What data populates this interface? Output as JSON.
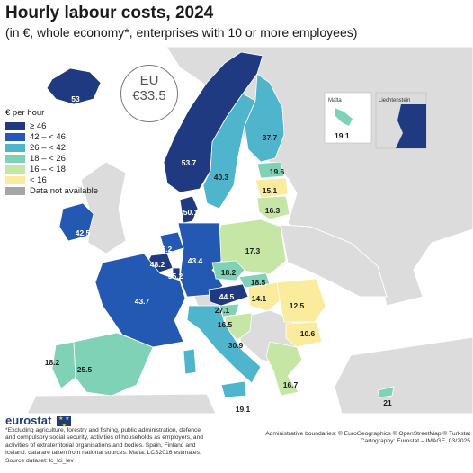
{
  "title": "Hourly labour costs, 2024",
  "subtitle": "(in €, whole economy*, enterprises with 10 or more employees)",
  "eu_average": {
    "label": "EU",
    "value": "€33.5"
  },
  "legend": {
    "title": "€ per hour",
    "classes": [
      {
        "label": "≥ 46",
        "color": "#1f3a80"
      },
      {
        "label": "42 – < 46",
        "color": "#2459b3"
      },
      {
        "label": "26 – < 42",
        "color": "#4fb5cc"
      },
      {
        "label": "18 – < 26",
        "color": "#80d2b6"
      },
      {
        "label": "16 – < 18",
        "color": "#c6e6a6"
      },
      {
        "label": "< 16",
        "color": "#fbeb9c"
      },
      {
        "label": "Data not available",
        "color": "#a5a5a5"
      }
    ]
  },
  "insets": {
    "malta": "Malta",
    "liechtenstein": "Liechtenstein"
  },
  "map_values": {
    "iceland": "53",
    "norway": "53.7",
    "sweden": "40.3",
    "finland": "37.7",
    "ireland": "42.5",
    "denmark": "50.1",
    "estonia": "19.6",
    "latvia": "15.1",
    "lithuania": "16.3",
    "poland": "17.3",
    "netherlands": "45.2",
    "belgium": "48.2",
    "luxembourg": "55.2",
    "germany": "43.4",
    "czechia": "18.2",
    "slovakia": "18.5",
    "austria": "44.5",
    "hungary": "14.1",
    "romania": "12.5",
    "bulgaria": "10.6",
    "france": "43.7",
    "slovenia": "27.1",
    "croatia": "16.5",
    "italy": "30.9",
    "portugal": "18.2",
    "spain": "25.5",
    "greece": "16.7",
    "cyprus": "21",
    "malta": "19.1",
    "malta_map": "19.1"
  },
  "footnote": {
    "brand": "eurostat",
    "lines": [
      "*Excluding agriculture, forestry and fishing, public administration, defence",
      "and compulsory social security, activities of households as employers, and",
      "activities of extraterritorial organisations and bodies. Spain, Finland and",
      "Iceland: data are taken from national sources. Malta: LCS2016 estimates.",
      "Source dataset: lc_lci_lev"
    ]
  },
  "credits": [
    "Administrative boundaries: © EuroGeographics © OpenStreetMap © Turkstat",
    "Cartography: Eurostat – IMAGE, 03/2025"
  ]
}
